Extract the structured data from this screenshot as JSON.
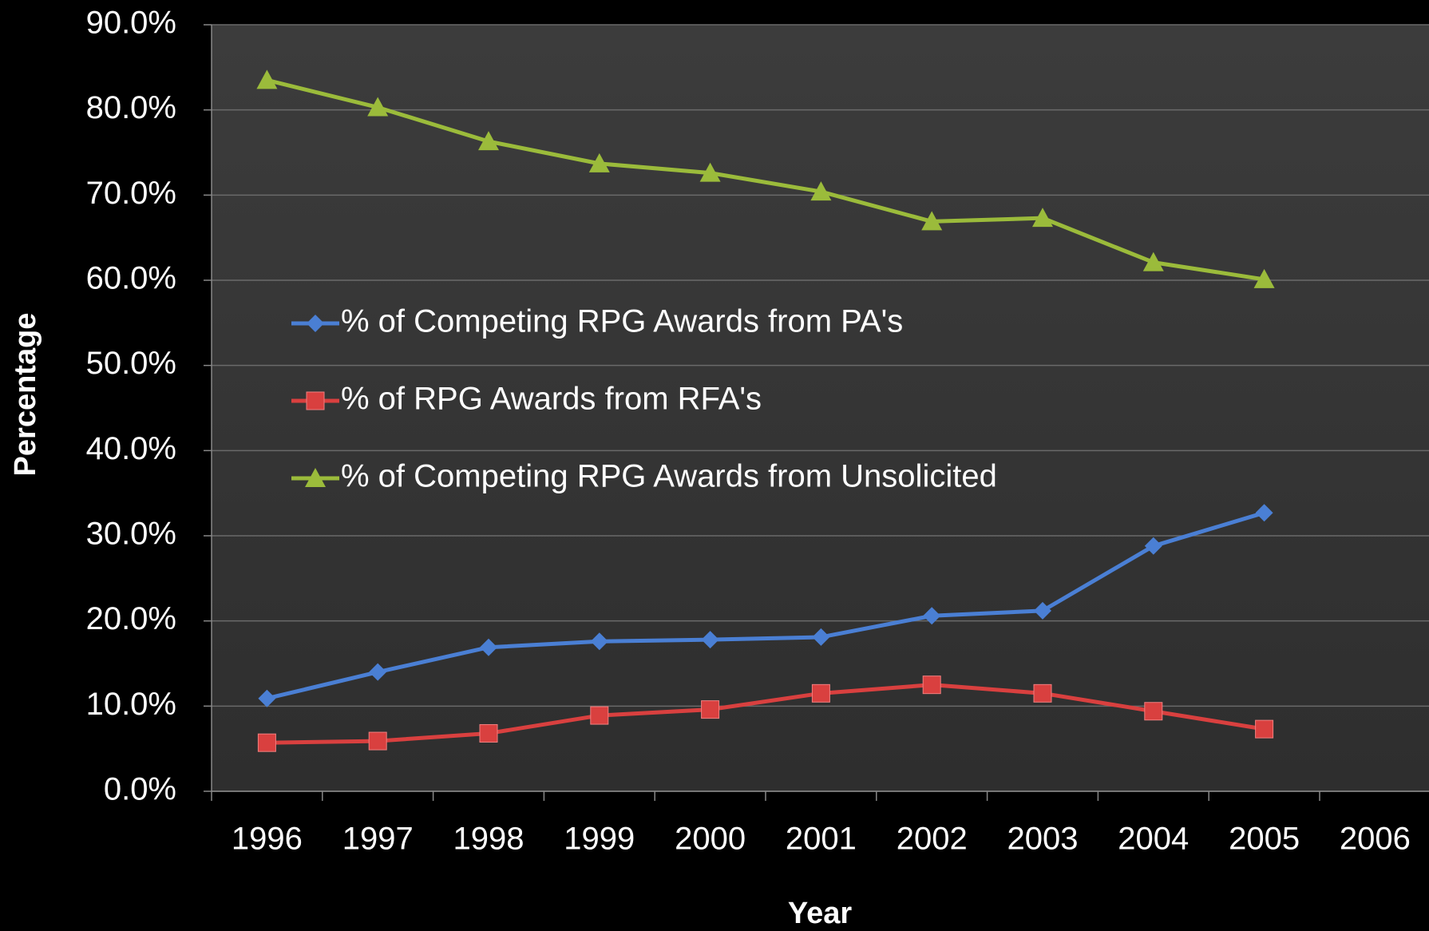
{
  "chart_data": {
    "type": "line",
    "x_label": "Year",
    "y_label": "Percentage",
    "categories": [
      "1996",
      "1997",
      "1998",
      "1999",
      "2000",
      "2001",
      "2002",
      "2003",
      "2004",
      "2005",
      "2006"
    ],
    "series": [
      {
        "name": "% of Competing RPG Awards from PA's",
        "color": "#4a7fd4",
        "marker": "diamond",
        "values": [
          10.9,
          14.0,
          16.9,
          17.6,
          17.8,
          18.1,
          20.6,
          21.2,
          28.8,
          32.7,
          null
        ]
      },
      {
        "name": "% of RPG Awards from RFA's",
        "color": "#d9403f",
        "marker": "square",
        "values": [
          5.7,
          5.9,
          6.8,
          8.9,
          9.6,
          11.5,
          12.5,
          11.5,
          9.4,
          7.3,
          null
        ]
      },
      {
        "name": "% of Competing RPG Awards from Unsolicited",
        "color": "#9bbb3b",
        "marker": "triangle",
        "values": [
          83.5,
          80.3,
          76.3,
          73.7,
          72.6,
          70.4,
          66.9,
          67.3,
          62.1,
          60.1,
          null
        ]
      }
    ],
    "ylim": [
      0,
      90
    ],
    "yticks": [
      {
        "value": 0,
        "label": "0.0%"
      },
      {
        "value": 10,
        "label": "10.0%"
      },
      {
        "value": 20,
        "label": "20.0%"
      },
      {
        "value": 30,
        "label": "30.0%"
      },
      {
        "value": 40,
        "label": "40.0%"
      },
      {
        "value": 50,
        "label": "50.0%"
      },
      {
        "value": 60,
        "label": "60.0%"
      },
      {
        "value": 70,
        "label": "70.0%"
      },
      {
        "value": 80,
        "label": "80.0%"
      },
      {
        "value": 90,
        "label": "90.0%"
      }
    ],
    "grid": true,
    "legend": "inside-left"
  }
}
